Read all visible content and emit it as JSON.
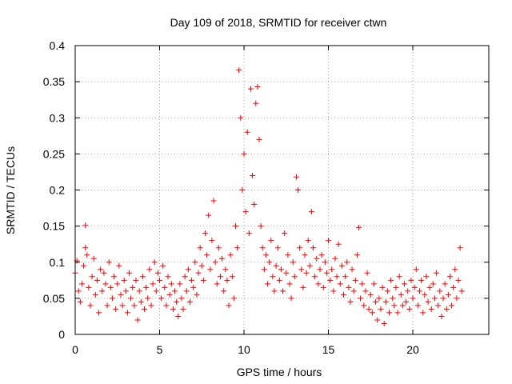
{
  "chart_data": {
    "type": "scatter",
    "title": "Day 109 of 2018, SRMTID for receiver ctwn",
    "xlabel": "GPS time / hours",
    "ylabel": "SRMTID / TECUs",
    "xlim": [
      0,
      24.5
    ],
    "ylim": [
      0,
      0.4
    ],
    "grid": true,
    "marker": "+",
    "color": "#ff0000",
    "xticks": [
      0,
      5,
      10,
      15,
      20
    ],
    "xtick_labels": [
      "0",
      "5",
      "10",
      "15",
      "20"
    ],
    "yticks": [
      0,
      0.05,
      0.1,
      0.15,
      0.2,
      0.25,
      0.3,
      0.35,
      0.4
    ],
    "ytick_labels": [
      "0",
      "0.05",
      "0.1",
      "0.15",
      "0.2",
      "0.25",
      "0.3",
      "0.35",
      "0.4"
    ],
    "series": [
      {
        "name": "ctwn",
        "points": [
          [
            0.0,
            0.085
          ],
          [
            0.1,
            0.102
          ],
          [
            0.2,
            0.06
          ],
          [
            0.3,
            0.045
          ],
          [
            0.4,
            0.07
          ],
          [
            0.5,
            0.095
          ],
          [
            0.6,
            0.151
          ],
          [
            0.6,
            0.12
          ],
          [
            0.7,
            0.11
          ],
          [
            0.8,
            0.065
          ],
          [
            0.9,
            0.04
          ],
          [
            1.0,
            0.08
          ],
          [
            1.1,
            0.105
          ],
          [
            1.2,
            0.055
          ],
          [
            1.3,
            0.075
          ],
          [
            1.4,
            0.03
          ],
          [
            1.5,
            0.09
          ],
          [
            1.6,
            0.06
          ],
          [
            1.7,
            0.085
          ],
          [
            1.8,
            0.07
          ],
          [
            1.9,
            0.04
          ],
          [
            2.0,
            0.1
          ],
          [
            2.1,
            0.065
          ],
          [
            2.2,
            0.05
          ],
          [
            2.3,
            0.08
          ],
          [
            2.4,
            0.035
          ],
          [
            2.5,
            0.07
          ],
          [
            2.6,
            0.095
          ],
          [
            2.7,
            0.055
          ],
          [
            2.8,
            0.04
          ],
          [
            2.9,
            0.075
          ],
          [
            3.0,
            0.06
          ],
          [
            3.1,
            0.03
          ],
          [
            3.2,
            0.085
          ],
          [
            3.3,
            0.05
          ],
          [
            3.4,
            0.065
          ],
          [
            3.5,
            0.04
          ],
          [
            3.6,
            0.075
          ],
          [
            3.7,
            0.02
          ],
          [
            3.8,
            0.06
          ],
          [
            3.9,
            0.045
          ],
          [
            4.0,
            0.08
          ],
          [
            4.1,
            0.035
          ],
          [
            4.2,
            0.065
          ],
          [
            4.3,
            0.05
          ],
          [
            4.4,
            0.09
          ],
          [
            4.5,
            0.04
          ],
          [
            4.6,
            0.07
          ],
          [
            4.7,
            0.1
          ],
          [
            4.8,
            0.06
          ],
          [
            4.9,
            0.085
          ],
          [
            5.0,
            0.075
          ],
          [
            5.1,
            0.05
          ],
          [
            5.2,
            0.095
          ],
          [
            5.3,
            0.065
          ],
          [
            5.4,
            0.04
          ],
          [
            5.5,
            0.08
          ],
          [
            5.6,
            0.055
          ],
          [
            5.7,
            0.07
          ],
          [
            5.8,
            0.035
          ],
          [
            5.9,
            0.06
          ],
          [
            6.0,
            0.045
          ],
          [
            6.1,
            0.025
          ],
          [
            6.2,
            0.07
          ],
          [
            6.3,
            0.05
          ],
          [
            6.4,
            0.035
          ],
          [
            6.5,
            0.08
          ],
          [
            6.6,
            0.06
          ],
          [
            6.7,
            0.09
          ],
          [
            6.8,
            0.045
          ],
          [
            6.9,
            0.075
          ],
          [
            7.0,
            0.065
          ],
          [
            7.1,
            0.1
          ],
          [
            7.2,
            0.055
          ],
          [
            7.3,
            0.085
          ],
          [
            7.4,
            0.12
          ],
          [
            7.5,
            0.095
          ],
          [
            7.6,
            0.075
          ],
          [
            7.7,
            0.14
          ],
          [
            7.8,
            0.11
          ],
          [
            7.9,
            0.165
          ],
          [
            8.0,
            0.09
          ],
          [
            8.1,
            0.13
          ],
          [
            8.2,
            0.185
          ],
          [
            8.3,
            0.1
          ],
          [
            8.4,
            0.07
          ],
          [
            8.5,
            0.12
          ],
          [
            8.6,
            0.08
          ],
          [
            8.7,
            0.105
          ],
          [
            8.8,
            0.06
          ],
          [
            8.9,
            0.09
          ],
          [
            9.0,
            0.075
          ],
          [
            9.1,
            0.04
          ],
          [
            9.2,
            0.11
          ],
          [
            9.3,
            0.08
          ],
          [
            9.4,
            0.05
          ],
          [
            9.5,
            0.15
          ],
          [
            9.6,
            0.12
          ],
          [
            9.7,
            0.366
          ],
          [
            9.8,
            0.3
          ],
          [
            9.9,
            0.2
          ],
          [
            10.0,
            0.25
          ],
          [
            10.1,
            0.17
          ],
          [
            10.2,
            0.28
          ],
          [
            10.3,
            0.14
          ],
          [
            10.4,
            0.34
          ],
          [
            10.5,
            0.22
          ],
          [
            10.6,
            0.18
          ],
          [
            10.7,
            0.32
          ],
          [
            10.8,
            0.343
          ],
          [
            10.9,
            0.27
          ],
          [
            11.0,
            0.15
          ],
          [
            11.1,
            0.12
          ],
          [
            11.2,
            0.09
          ],
          [
            11.3,
            0.11
          ],
          [
            11.4,
            0.07
          ],
          [
            11.5,
            0.1
          ],
          [
            11.6,
            0.13
          ],
          [
            11.7,
            0.08
          ],
          [
            11.8,
            0.06
          ],
          [
            11.9,
            0.095
          ],
          [
            12.0,
            0.12
          ],
          [
            12.1,
            0.075
          ],
          [
            12.2,
            0.09
          ],
          [
            12.3,
            0.06
          ],
          [
            12.4,
            0.14
          ],
          [
            12.5,
            0.085
          ],
          [
            12.6,
            0.11
          ],
          [
            12.7,
            0.07
          ],
          [
            12.8,
            0.05
          ],
          [
            12.9,
            0.1
          ],
          [
            13.0,
            0.08
          ],
          [
            13.1,
            0.218
          ],
          [
            13.2,
            0.2
          ],
          [
            13.3,
            0.12
          ],
          [
            13.4,
            0.09
          ],
          [
            13.5,
            0.065
          ],
          [
            13.6,
            0.11
          ],
          [
            13.7,
            0.085
          ],
          [
            13.8,
            0.13
          ],
          [
            13.9,
            0.095
          ],
          [
            14.0,
            0.17
          ],
          [
            14.1,
            0.12
          ],
          [
            14.2,
            0.08
          ],
          [
            14.3,
            0.105
          ],
          [
            14.4,
            0.07
          ],
          [
            14.5,
            0.09
          ],
          [
            14.6,
            0.11
          ],
          [
            14.7,
            0.065
          ],
          [
            14.8,
            0.1
          ],
          [
            14.9,
            0.085
          ],
          [
            15.0,
            0.13
          ],
          [
            15.1,
            0.075
          ],
          [
            15.2,
            0.09
          ],
          [
            15.3,
            0.06
          ],
          [
            15.4,
            0.105
          ],
          [
            15.5,
            0.08
          ],
          [
            15.6,
            0.125
          ],
          [
            15.7,
            0.07
          ],
          [
            15.8,
            0.095
          ],
          [
            15.9,
            0.055
          ],
          [
            16.0,
            0.08
          ],
          [
            16.1,
            0.1
          ],
          [
            16.2,
            0.065
          ],
          [
            16.3,
            0.045
          ],
          [
            16.4,
            0.09
          ],
          [
            16.5,
            0.06
          ],
          [
            16.6,
            0.075
          ],
          [
            16.7,
            0.11
          ],
          [
            16.8,
            0.148
          ],
          [
            16.9,
            0.05
          ],
          [
            17.0,
            0.07
          ],
          [
            17.1,
            0.04
          ],
          [
            17.2,
            0.06
          ],
          [
            17.3,
            0.085
          ],
          [
            17.4,
            0.035
          ],
          [
            17.5,
            0.055
          ],
          [
            17.6,
            0.03
          ],
          [
            17.7,
            0.07
          ],
          [
            17.8,
            0.045
          ],
          [
            17.9,
            0.02
          ],
          [
            18.0,
            0.05
          ],
          [
            18.1,
            0.035
          ],
          [
            18.2,
            0.065
          ],
          [
            18.3,
            0.015
          ],
          [
            18.4,
            0.045
          ],
          [
            18.5,
            0.06
          ],
          [
            18.6,
            0.03
          ],
          [
            18.7,
            0.075
          ],
          [
            18.8,
            0.05
          ],
          [
            18.9,
            0.04
          ],
          [
            19.0,
            0.065
          ],
          [
            19.1,
            0.03
          ],
          [
            19.2,
            0.08
          ],
          [
            19.3,
            0.055
          ],
          [
            19.4,
            0.04
          ],
          [
            19.5,
            0.07
          ],
          [
            19.6,
            0.045
          ],
          [
            19.7,
            0.06
          ],
          [
            19.8,
            0.035
          ],
          [
            19.9,
            0.075
          ],
          [
            20.0,
            0.05
          ],
          [
            20.1,
            0.065
          ],
          [
            20.2,
            0.09
          ],
          [
            20.3,
            0.04
          ],
          [
            20.4,
            0.06
          ],
          [
            20.5,
            0.075
          ],
          [
            20.6,
            0.03
          ],
          [
            20.7,
            0.055
          ],
          [
            20.8,
            0.08
          ],
          [
            20.9,
            0.045
          ],
          [
            21.0,
            0.065
          ],
          [
            21.1,
            0.035
          ],
          [
            21.2,
            0.07
          ],
          [
            21.3,
            0.05
          ],
          [
            21.4,
            0.085
          ],
          [
            21.5,
            0.04
          ],
          [
            21.6,
            0.06
          ],
          [
            21.7,
            0.025
          ],
          [
            21.8,
            0.05
          ],
          [
            21.9,
            0.07
          ],
          [
            22.0,
            0.035
          ],
          [
            22.1,
            0.055
          ],
          [
            22.2,
            0.08
          ],
          [
            22.3,
            0.04
          ],
          [
            22.4,
            0.065
          ],
          [
            22.5,
            0.09
          ],
          [
            22.6,
            0.05
          ],
          [
            22.7,
            0.075
          ],
          [
            22.8,
            0.12
          ],
          [
            22.9,
            0.06
          ]
        ]
      }
    ]
  }
}
